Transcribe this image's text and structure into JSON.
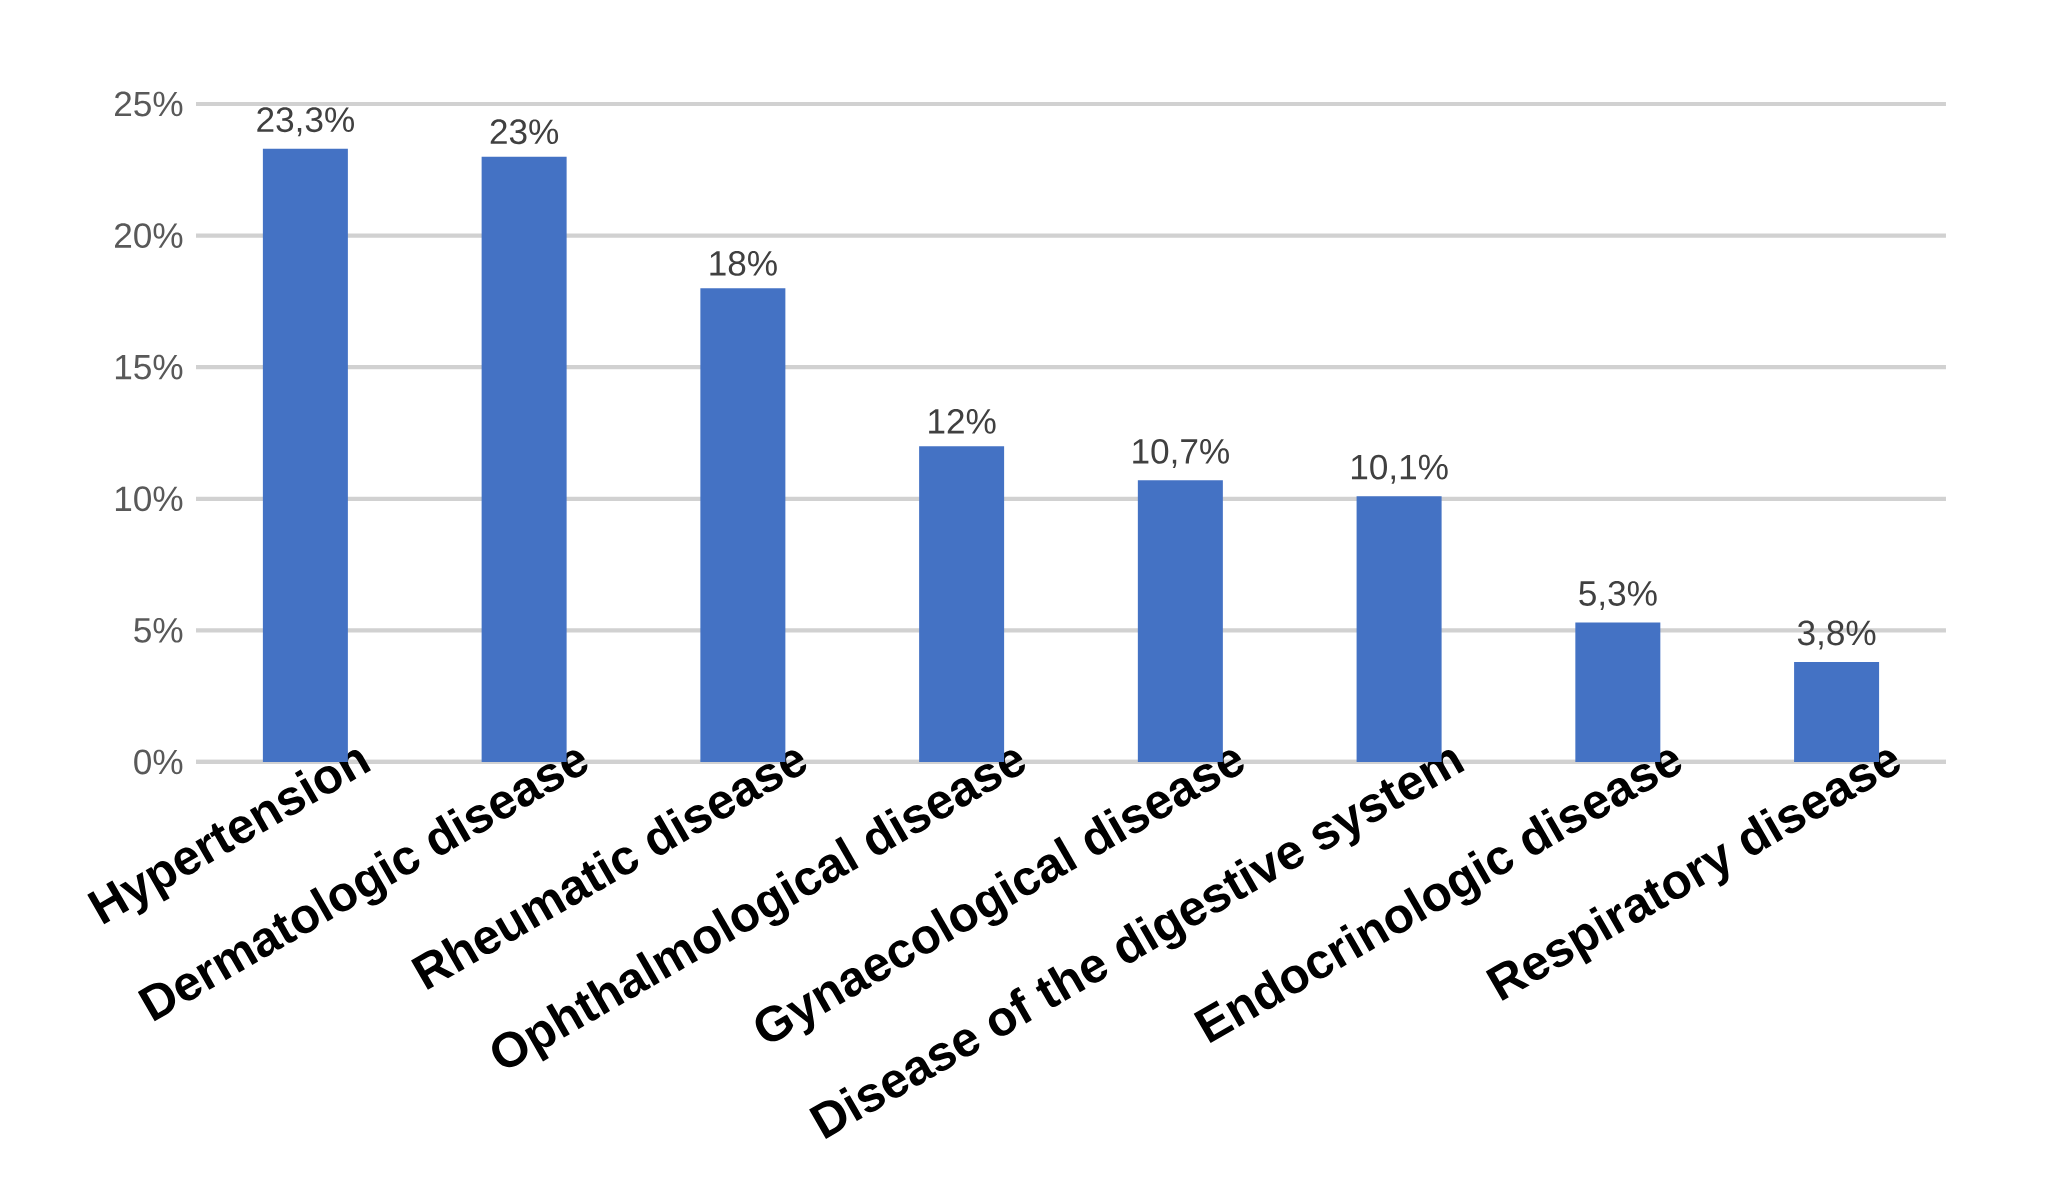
{
  "chart_data": {
    "type": "bar",
    "categories": [
      "Hypertension",
      "Dermatologic disease",
      "Rheumatic disease",
      "Ophthalmological disease",
      "Gynaecological disease",
      "Disease of the digestive system",
      "Endocrinologic disease",
      "Respiratory disease"
    ],
    "values": [
      23.3,
      23,
      18,
      12,
      10.7,
      10.1,
      5.3,
      3.8
    ],
    "value_labels": [
      "23,3%",
      "23%",
      "18%",
      "12%",
      "10,7%",
      "10,1%",
      "5,3%",
      "3,8%"
    ],
    "color": "#4472c4",
    "ylim": [
      0,
      25
    ],
    "yticks": [
      {
        "value": 0,
        "label": "0%"
      },
      {
        "value": 5,
        "label": "5%"
      },
      {
        "value": 10,
        "label": "10%"
      },
      {
        "value": 15,
        "label": "15%"
      },
      {
        "value": 20,
        "label": "20%"
      },
      {
        "value": 25,
        "label": "25%"
      }
    ],
    "grid": "y"
  }
}
